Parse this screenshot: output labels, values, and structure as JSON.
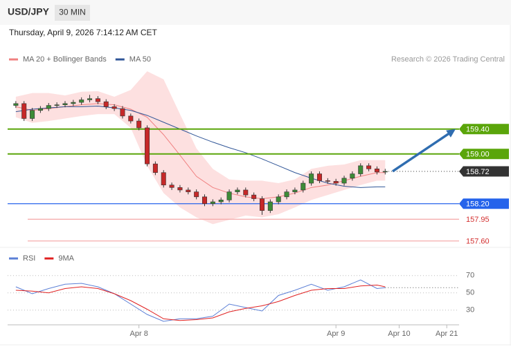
{
  "header": {
    "symbol": "USD/JPY",
    "timeframe": "30 MIN",
    "datetime": "Thursday, April 9, 2026 7:14:12 AM CET"
  },
  "chart_data": [
    {
      "type": "candlestick",
      "credit": "Research © 2026 Trading Central",
      "up_color": "#3d8b37",
      "down_color": "#c62828",
      "xlim": [
        -1,
        54
      ],
      "ylim": [
        157.53,
        160.42
      ],
      "open": [
        159.78,
        159.81,
        159.57,
        159.7,
        159.73,
        159.78,
        159.79,
        159.81,
        159.83,
        159.87,
        159.89,
        159.84,
        159.76,
        159.73,
        159.61,
        159.53,
        159.42,
        158.84,
        158.7,
        158.5,
        158.46,
        158.42,
        158.39,
        158.31,
        158.2,
        158.23,
        158.26,
        158.39,
        158.42,
        158.34,
        158.28,
        158.09,
        158.23,
        158.31,
        158.39,
        158.42,
        158.53,
        158.68,
        158.57,
        158.56,
        158.53,
        158.61,
        158.68,
        158.81,
        158.76,
        158.71
      ],
      "high": [
        159.85,
        159.85,
        159.74,
        159.77,
        159.82,
        159.83,
        159.85,
        159.87,
        159.91,
        159.95,
        159.93,
        159.88,
        159.8,
        159.77,
        159.65,
        159.57,
        159.46,
        158.88,
        158.74,
        158.54,
        158.5,
        158.46,
        158.43,
        158.35,
        158.27,
        158.3,
        158.43,
        158.46,
        158.46,
        158.38,
        158.32,
        158.27,
        158.35,
        158.43,
        158.46,
        158.57,
        158.72,
        158.72,
        158.61,
        158.6,
        158.65,
        158.72,
        158.85,
        158.85,
        158.8,
        158.76
      ],
      "low": [
        159.74,
        159.53,
        159.53,
        159.66,
        159.69,
        159.74,
        159.75,
        159.77,
        159.79,
        159.83,
        159.8,
        159.72,
        159.69,
        159.57,
        159.49,
        159.38,
        158.8,
        158.66,
        158.46,
        158.42,
        158.38,
        158.35,
        158.27,
        158.16,
        158.16,
        158.19,
        158.22,
        158.35,
        158.3,
        158.24,
        158.02,
        158.05,
        158.19,
        158.27,
        158.35,
        158.38,
        158.49,
        158.53,
        158.52,
        158.49,
        158.49,
        158.57,
        158.64,
        158.72,
        158.67,
        158.67
      ],
      "close": [
        159.81,
        159.57,
        159.7,
        159.73,
        159.78,
        159.79,
        159.81,
        159.83,
        159.87,
        159.89,
        159.84,
        159.76,
        159.73,
        159.61,
        159.53,
        159.42,
        158.84,
        158.7,
        158.5,
        158.46,
        158.42,
        158.39,
        158.31,
        158.2,
        158.23,
        158.26,
        158.39,
        158.42,
        158.34,
        158.28,
        158.09,
        158.23,
        158.31,
        158.39,
        158.42,
        158.53,
        158.68,
        158.57,
        158.56,
        158.53,
        158.61,
        158.68,
        158.81,
        158.76,
        158.71,
        158.72
      ],
      "overlay_x": [
        0,
        2,
        4,
        6,
        8,
        10,
        12,
        14,
        16,
        18,
        20,
        22,
        24,
        26,
        28,
        30,
        32,
        34,
        36,
        38,
        40,
        42,
        44,
        45
      ],
      "band": {
        "color": "#fde0e0",
        "upper": [
          159.92,
          159.98,
          159.98,
          159.94,
          160.0,
          160.01,
          159.92,
          160.03,
          160.33,
          160.2,
          159.64,
          159.09,
          158.76,
          158.59,
          158.57,
          158.57,
          158.53,
          158.59,
          158.76,
          158.81,
          158.83,
          158.9,
          158.9,
          158.9
        ],
        "lower": [
          159.59,
          159.5,
          159.53,
          159.57,
          159.61,
          159.64,
          159.64,
          159.42,
          158.81,
          158.37,
          158.14,
          157.98,
          157.87,
          157.94,
          158.01,
          157.98,
          158.03,
          158.14,
          158.26,
          158.34,
          158.42,
          158.5,
          158.57,
          158.57
        ]
      },
      "series": [
        {
          "name": "MA 20 + Bollinger Bands",
          "color": "#f08080",
          "values": [
            159.76,
            159.7,
            159.73,
            159.76,
            159.79,
            159.81,
            159.79,
            159.72,
            159.59,
            159.31,
            158.98,
            158.64,
            158.46,
            158.37,
            158.31,
            158.28,
            158.31,
            158.37,
            158.46,
            158.5,
            158.57,
            158.64,
            158.7,
            158.7
          ]
        },
        {
          "name": "MA 50",
          "color": "#2f5597",
          "values": [
            159.68,
            159.72,
            159.74,
            159.76,
            159.76,
            159.77,
            159.74,
            159.7,
            159.62,
            159.51,
            159.4,
            159.29,
            159.19,
            159.1,
            159.02,
            158.92,
            158.81,
            158.7,
            158.61,
            158.53,
            158.48,
            158.46,
            158.47,
            158.47
          ]
        }
      ],
      "levels": [
        {
          "value": 159.4,
          "label": "159.40",
          "color": "#5aa50a",
          "style": "box"
        },
        {
          "value": 159.0,
          "label": "159.00",
          "color": "#5aa50a",
          "style": "box"
        },
        {
          "value": 158.72,
          "label": "158.72",
          "color": "#333333",
          "style": "current"
        },
        {
          "value": 158.2,
          "label": "158.20",
          "color": "#2563eb",
          "style": "box"
        },
        {
          "value": 157.95,
          "label": "157.95",
          "color": "#d32f2f",
          "style": "text"
        },
        {
          "value": 157.6,
          "label": "157.60",
          "color": "#d32f2f",
          "style": "text"
        }
      ]
    },
    {
      "type": "line",
      "xlim": [
        -1,
        54
      ],
      "ylim": [
        13,
        81
      ],
      "yticks": [
        30,
        50,
        70
      ],
      "x": [
        0,
        2,
        4,
        6,
        8,
        10,
        12,
        14,
        16,
        18,
        20,
        22,
        24,
        26,
        28,
        30,
        32,
        34,
        36,
        38,
        40,
        42,
        44,
        45
      ],
      "xticks": [
        {
          "value": 15,
          "label": "Apr 8"
        },
        {
          "value": 39,
          "label": "Apr 9"
        },
        {
          "value": 46.7,
          "label": "Apr 10"
        },
        {
          "value": 52.5,
          "label": "Apr 21"
        }
      ],
      "series": [
        {
          "name": "RSI",
          "color": "#5b7fd6",
          "values": [
            57,
            49,
            55,
            60,
            61,
            57,
            49,
            37,
            25,
            17,
            20,
            20,
            23,
            37,
            33,
            29,
            47,
            53,
            60,
            53,
            57,
            65,
            55,
            56
          ]
        },
        {
          "name": "9MA",
          "color": "#e02020",
          "values": [
            53,
            52,
            50,
            55,
            57,
            55,
            49,
            41,
            31,
            20,
            18,
            19,
            21,
            28,
            32,
            35,
            40,
            47,
            53,
            55,
            55,
            58,
            59,
            57
          ]
        }
      ]
    }
  ]
}
